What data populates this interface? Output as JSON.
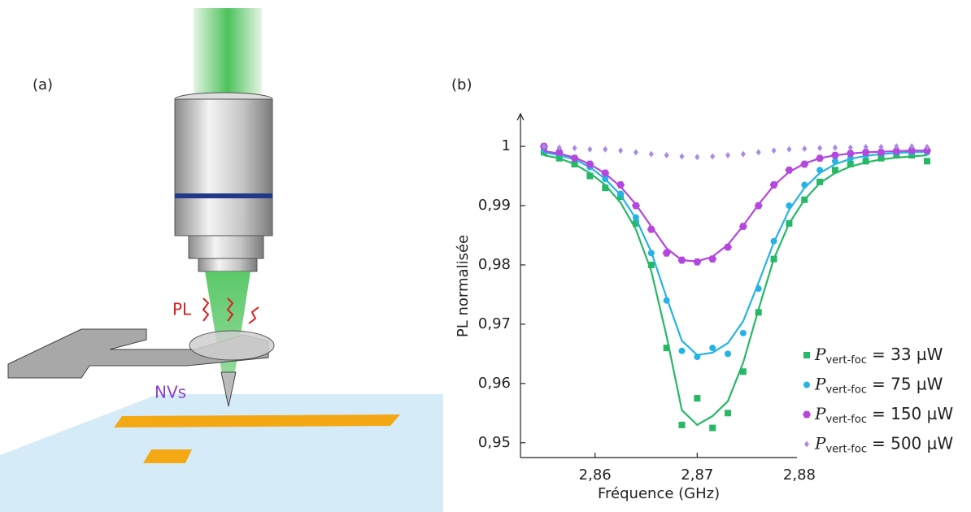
{
  "panels": {
    "a": "(a)",
    "b": "(b)",
    "pl": "PL",
    "nvs": "NVs"
  },
  "chart_data": {
    "type": "scatter",
    "x_label": "Fréquence (GHz)",
    "y_label": "PL normalisée",
    "x": [
      2.855,
      2.8565,
      2.858,
      2.8595,
      2.861,
      2.8625,
      2.864,
      2.8655,
      2.867,
      2.8685,
      2.87,
      2.8715,
      2.873,
      2.8745,
      2.876,
      2.8775,
      2.879,
      2.8805,
      2.882,
      2.8835,
      2.885,
      2.8865,
      2.888,
      2.8895,
      2.891,
      2.8925
    ],
    "xlim": [
      2.8527,
      2.8925
    ],
    "ylim": [
      0.9475,
      1.0055
    ],
    "xticks": [
      {
        "value": 2.86,
        "label": "2,86"
      },
      {
        "value": 2.87,
        "label": "2,87"
      },
      {
        "value": 2.88,
        "label": "2,88"
      }
    ],
    "yticks": [
      {
        "value": 0.95,
        "label": "0,95"
      },
      {
        "value": 0.96,
        "label": "0,96"
      },
      {
        "value": 0.97,
        "label": "0,97"
      },
      {
        "value": 0.98,
        "label": "0,98"
      },
      {
        "value": 0.99,
        "label": "0,99"
      },
      1
    ],
    "series": [
      {
        "label": {
          "symbol": "P",
          "subscript": "vert-foc",
          "value": "= 33 µW"
        },
        "color": "#27b866",
        "marker": "square",
        "values": [
          0.999,
          0.998,
          0.997,
          0.995,
          0.993,
          0.9915,
          0.987,
          0.98,
          0.966,
          0.953,
          0.9575,
          0.9525,
          0.955,
          0.962,
          0.972,
          0.981,
          0.987,
          0.991,
          0.994,
          0.996,
          0.997,
          0.9975,
          0.998,
          0.9985,
          0.9985,
          0.9975
        ],
        "fit": [
          0.9985,
          0.998,
          0.997,
          0.9955,
          0.9935,
          0.9905,
          0.986,
          0.979,
          0.968,
          0.9555,
          0.953,
          0.9545,
          0.957,
          0.9635,
          0.9725,
          0.981,
          0.987,
          0.991,
          0.9938,
          0.9955,
          0.9966,
          0.9973,
          0.9978,
          0.9981,
          0.9983,
          0.9985
        ]
      },
      {
        "label": {
          "symbol": "P",
          "subscript": "vert-foc",
          "value": "= 75 µW"
        },
        "color": "#25b3e6",
        "marker": "circle",
        "values": [
          0.9995,
          0.999,
          0.998,
          0.9965,
          0.9945,
          0.992,
          0.988,
          0.982,
          0.974,
          0.9655,
          0.9645,
          0.966,
          0.965,
          0.9685,
          0.976,
          0.984,
          0.99,
          0.9935,
          0.996,
          0.9975,
          0.998,
          0.9985,
          0.9988,
          0.999,
          0.999,
          0.999
        ],
        "fit": [
          0.999,
          0.9985,
          0.9978,
          0.9965,
          0.9945,
          0.9918,
          0.9878,
          0.9822,
          0.9745,
          0.9672,
          0.9648,
          0.9652,
          0.9668,
          0.9705,
          0.977,
          0.9838,
          0.9893,
          0.993,
          0.9955,
          0.997,
          0.9979,
          0.9984,
          0.9987,
          0.9989,
          0.999,
          0.9991
        ]
      },
      {
        "label": {
          "symbol": "P",
          "subscript": "vert-foc",
          "value": "= 150 µW"
        },
        "color": "#b347de",
        "marker": "hexagon",
        "values": [
          1.0,
          0.999,
          0.998,
          0.997,
          0.9955,
          0.9935,
          0.99,
          0.986,
          0.982,
          0.9808,
          0.9805,
          0.981,
          0.983,
          0.9865,
          0.99,
          0.9935,
          0.996,
          0.997,
          0.998,
          0.9985,
          0.9988,
          0.999,
          0.999,
          0.9992,
          0.9993,
          0.9993
        ],
        "fit": [
          0.9992,
          0.9988,
          0.9981,
          0.997,
          0.9954,
          0.9932,
          0.9902,
          0.9865,
          0.9828,
          0.9808,
          0.9806,
          0.9814,
          0.9834,
          0.9866,
          0.9902,
          0.9934,
          0.9957,
          0.9971,
          0.998,
          0.9985,
          0.9988,
          0.999,
          0.9991,
          0.9992,
          0.9993,
          0.9993
        ]
      },
      {
        "label": {
          "symbol": "P",
          "subscript": "vert-foc",
          "value": "= 500 µW"
        },
        "color": "#a98be6",
        "marker": "diamond",
        "values": [
          1.0,
          0.9998,
          0.9997,
          0.9995,
          0.9995,
          0.9993,
          0.999,
          0.9987,
          0.9985,
          0.9983,
          0.9982,
          0.9983,
          0.9985,
          0.9987,
          0.999,
          0.9993,
          0.9995,
          0.9996,
          0.9997,
          0.9998,
          0.9998,
          0.9999,
          0.9999,
          1.0,
          1.0,
          0.9999
        ]
      }
    ]
  }
}
